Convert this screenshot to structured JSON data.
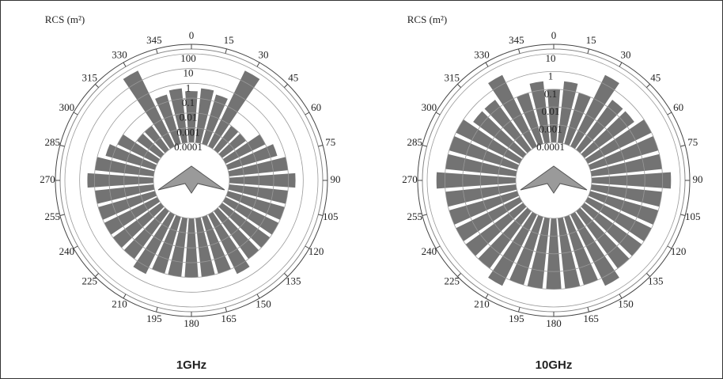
{
  "chart_data": [
    {
      "type": "polar",
      "title": "1GHz",
      "ylabel": "RCS (m²)",
      "log_scale": true,
      "color": "#5a5a5a",
      "x": [
        0,
        10,
        20,
        30,
        40,
        50,
        60,
        70,
        80,
        90,
        100,
        110,
        120,
        130,
        140,
        150,
        160,
        170,
        180,
        190,
        200,
        210,
        220,
        230,
        240,
        250,
        260,
        270,
        280,
        290,
        300,
        310,
        320,
        330,
        340,
        350
      ],
      "values": [
        0.3,
        0.5,
        0.3,
        50,
        0.01,
        0.01,
        0.1,
        0.3,
        1,
        3,
        1,
        1,
        1,
        1,
        1,
        3,
        1,
        1,
        1,
        1,
        1,
        3,
        1,
        1,
        1,
        1,
        1,
        3,
        1,
        0.3,
        0.1,
        0.01,
        0.01,
        50,
        0.3,
        0.5
      ],
      "xticks": [
        0,
        15,
        30,
        45,
        60,
        75,
        90,
        105,
        120,
        135,
        150,
        165,
        180,
        195,
        210,
        225,
        240,
        255,
        270,
        285,
        300,
        315,
        330,
        345
      ],
      "ylim": [
        0.0001,
        100
      ],
      "yticks": [
        0.0001,
        0.001,
        0.01,
        0.1,
        1,
        10,
        100
      ]
    },
    {
      "type": "polar",
      "title": "10GHz",
      "ylabel": "RCS (m²)",
      "log_scale": true,
      "color": "#5a5a5a",
      "x": [
        0,
        10,
        20,
        30,
        40,
        50,
        60,
        70,
        80,
        90,
        100,
        110,
        120,
        130,
        140,
        150,
        160,
        170,
        180,
        190,
        200,
        210,
        220,
        230,
        240,
        250,
        260,
        270,
        280,
        290,
        300,
        310,
        320,
        330,
        340,
        350
      ],
      "values": [
        0.1,
        0.3,
        0.1,
        3,
        0.3,
        0.3,
        1,
        1,
        1,
        3,
        1,
        1,
        1,
        1,
        1,
        3,
        1,
        1,
        1,
        1,
        1,
        3,
        1,
        1,
        1,
        1,
        1,
        3,
        1,
        1,
        1,
        0.3,
        0.3,
        3,
        0.1,
        0.3
      ],
      "xticks": [
        0,
        15,
        30,
        45,
        60,
        75,
        90,
        105,
        120,
        135,
        150,
        165,
        180,
        195,
        210,
        225,
        240,
        255,
        270,
        285,
        300,
        315,
        330,
        345
      ],
      "ylim": [
        0.0001,
        10
      ],
      "yticks": [
        0.0001,
        0.001,
        0.01,
        0.1,
        1,
        10
      ]
    }
  ]
}
